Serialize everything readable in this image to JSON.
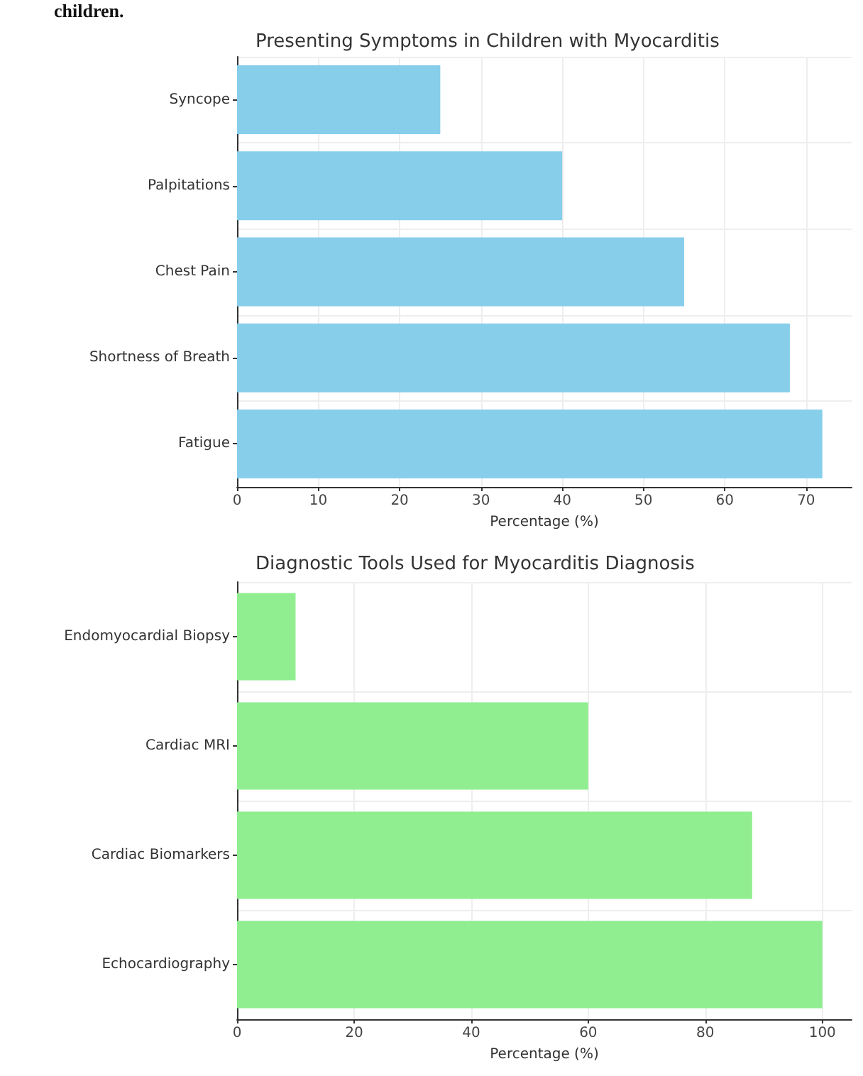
{
  "chart_data": [
    {
      "type": "bar",
      "orientation": "horizontal",
      "title": "Presenting Symptoms in Children with Myocarditis",
      "xlabel": "Percentage (%)",
      "annotations": [
        "children."
      ],
      "categories": [
        "Syncope",
        "Palpitations",
        "Chest Pain",
        "Shortness of Breath",
        "Fatigue"
      ],
      "values": [
        25,
        40,
        55,
        68,
        72
      ],
      "color": "#87ceeb",
      "xlim": [
        0,
        75.6
      ],
      "xticks": [
        0,
        10,
        20,
        30,
        40,
        50,
        60,
        70
      ],
      "grid": true
    },
    {
      "type": "bar",
      "orientation": "horizontal",
      "title": "Diagnostic Tools Used for Myocarditis Diagnosis",
      "xlabel": "Percentage (%)",
      "categories": [
        "Endomyocardial Biopsy",
        "Cardiac MRI",
        "Cardiac Biomarkers",
        "Echocardiography"
      ],
      "values": [
        10,
        60,
        88,
        100
      ],
      "color": "#90ee90",
      "xlim": [
        0,
        105
      ],
      "xticks": [
        0,
        20,
        40,
        60,
        80,
        100
      ],
      "grid": true
    }
  ]
}
